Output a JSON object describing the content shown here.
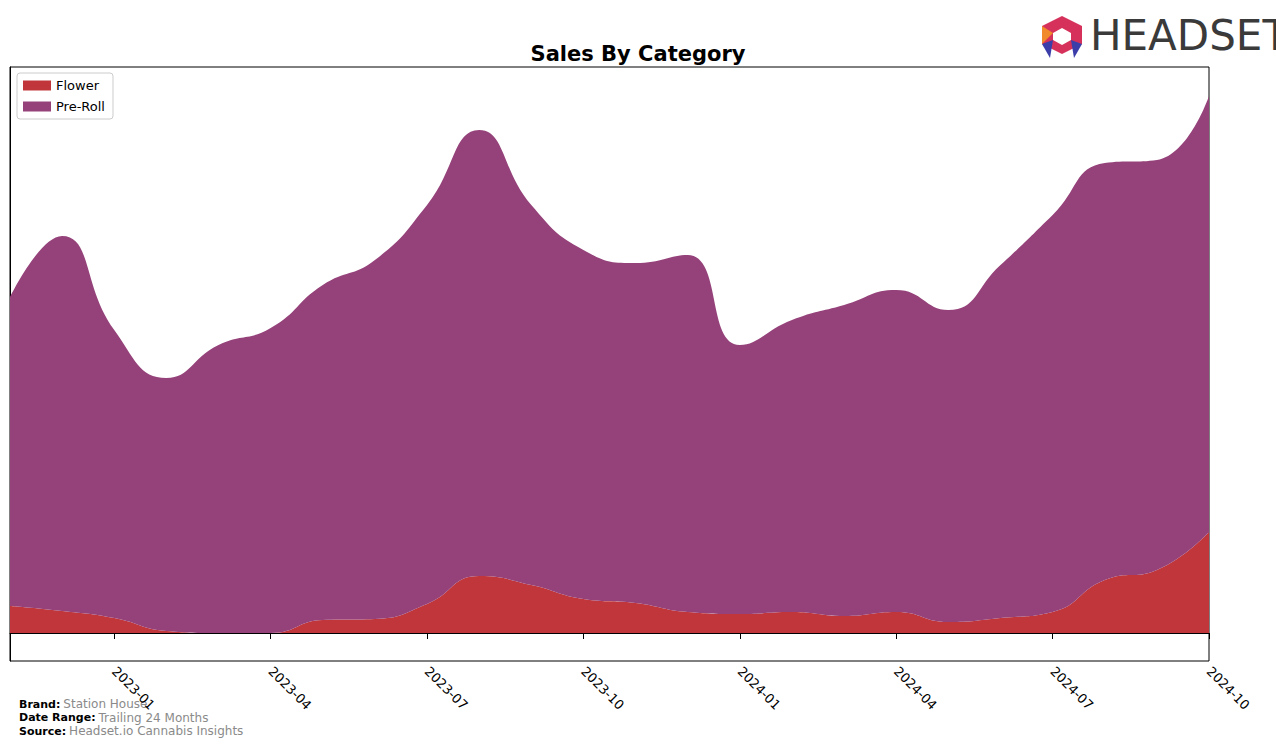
{
  "chart_data": {
    "type": "area",
    "title": "Sales By Category",
    "categories": [
      null,
      null,
      "2023-01",
      null,
      null,
      "2023-04",
      null,
      null,
      "2023-07",
      null,
      null,
      "2023-10",
      null,
      null,
      "2024-01",
      null,
      null,
      "2024-04",
      null,
      null,
      "2024-07",
      null,
      null,
      "2024-10"
    ],
    "series": [
      {
        "name": "Flower",
        "color": "#c1363a",
        "values": [
          27,
          22,
          15,
          2,
          0,
          0,
          13,
          14,
          29,
          57,
          48,
          34,
          30,
          21,
          19,
          21,
          17,
          21,
          11,
          15,
          21,
          53,
          63,
          101
        ]
      },
      {
        "name": "Pre-Roll",
        "color": "#95427a",
        "values": [
          309,
          375,
          288,
          253,
          288,
          305,
          335,
          359,
          399,
          446,
          380,
          349,
          340,
          357,
          269,
          292,
          311,
          322,
          312,
          353,
          397,
          417,
          410,
          436
        ]
      }
    ],
    "stacked": true,
    "ylim": [
      -28,
      566
    ],
    "yticks": [],
    "grid": false,
    "legend": "upper left",
    "tick_labels": "x",
    "logo_text": "HEADSET",
    "footer": [
      {
        "label": "Brand:",
        "value": "Station House"
      },
      {
        "label": "Date Range:",
        "value": "Trailing 24 Months"
      },
      {
        "label": "Source:",
        "value": "Headset.io Cannabis Insights"
      }
    ]
  }
}
